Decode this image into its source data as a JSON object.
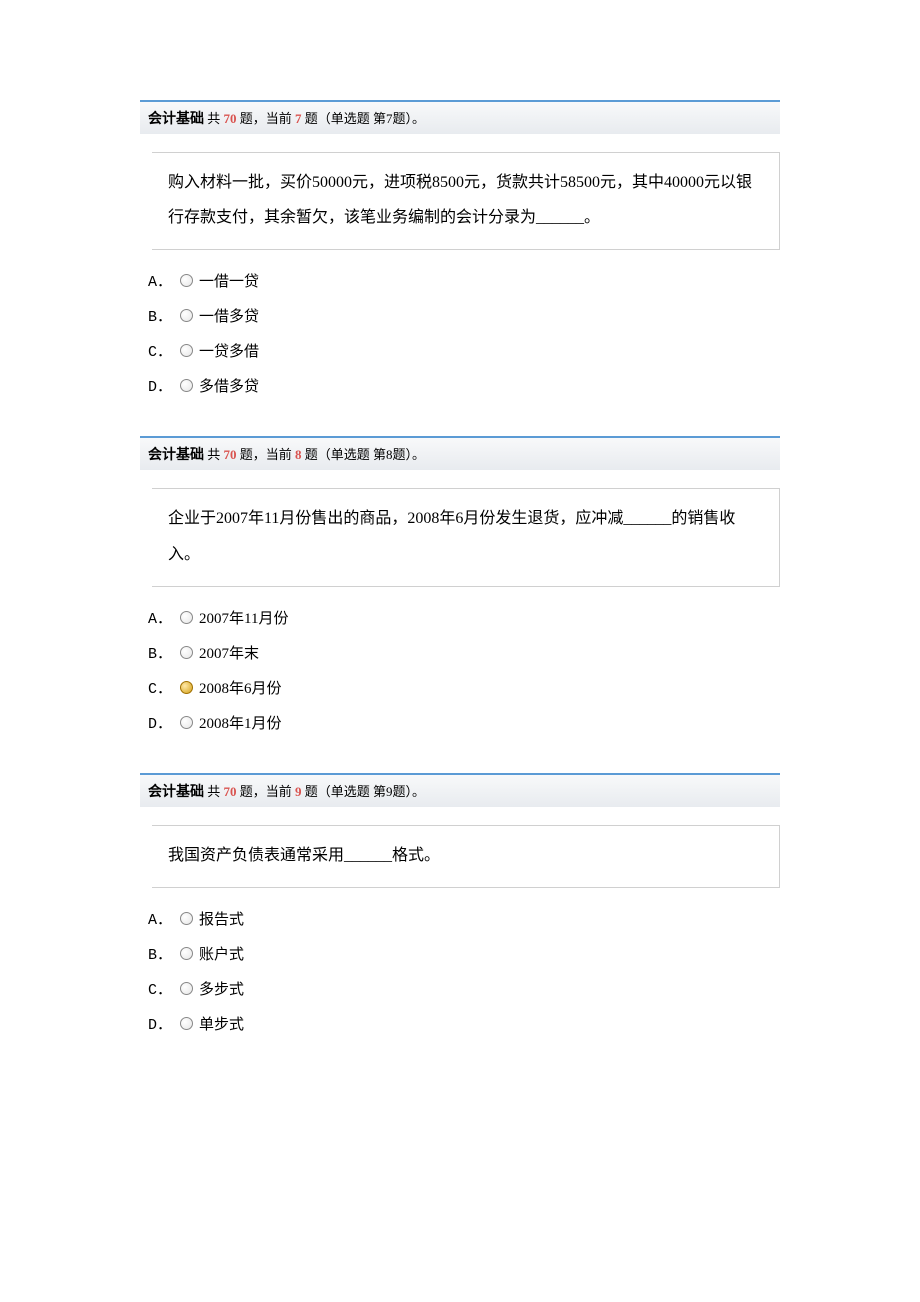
{
  "section_label": "会计基础",
  "total_prefix": " 共 ",
  "total_count": "70",
  "total_suffix": " 题，当前 ",
  "questions": [
    {
      "current_num": "7",
      "type_label": " 题（单选题 第7题）。",
      "text": "购入材料一批，买价50000元，进项税8500元，货款共计58500元，其中40000元以银行存款支付，其余暂欠，该笔业务编制的会计分录为______。",
      "options": [
        {
          "letter": "A．",
          "text": "一借一贷",
          "selected": false
        },
        {
          "letter": "B．",
          "text": "一借多贷",
          "selected": false
        },
        {
          "letter": "C．",
          "text": "一贷多借",
          "selected": false
        },
        {
          "letter": "D．",
          "text": "多借多贷",
          "selected": false
        }
      ]
    },
    {
      "current_num": "8",
      "type_label": " 题（单选题 第8题）。",
      "text": "企业于2007年11月份售出的商品，2008年6月份发生退货，应冲减______的销售收入。",
      "options": [
        {
          "letter": "A．",
          "text": "2007年11月份",
          "selected": false
        },
        {
          "letter": "B．",
          "text": "2007年末",
          "selected": false
        },
        {
          "letter": "C．",
          "text": "2008年6月份",
          "selected": true
        },
        {
          "letter": "D．",
          "text": "2008年1月份",
          "selected": false
        }
      ]
    },
    {
      "current_num": "9",
      "type_label": " 题（单选题 第9题）。",
      "text": "我国资产负债表通常采用______格式。",
      "options": [
        {
          "letter": "A．",
          "text": "报告式",
          "selected": false
        },
        {
          "letter": "B．",
          "text": "账户式",
          "selected": false
        },
        {
          "letter": "C．",
          "text": "多步式",
          "selected": false
        },
        {
          "letter": "D．",
          "text": "单步式",
          "selected": false
        }
      ]
    }
  ]
}
